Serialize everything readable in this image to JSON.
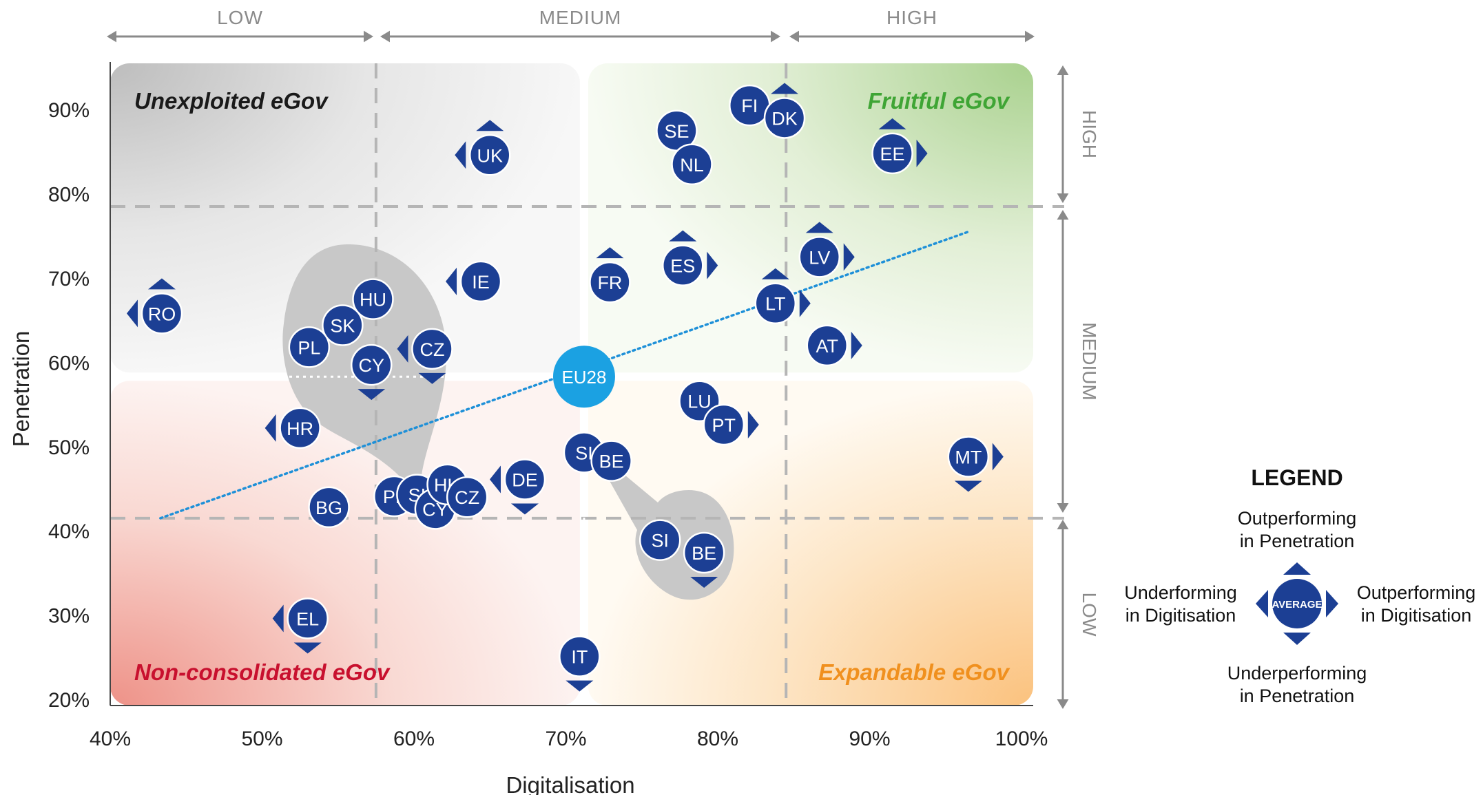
{
  "chart_data": {
    "type": "scatter",
    "title": "",
    "xlabel": "Digitalisation",
    "ylabel": "Penetration",
    "xlim": [
      40,
      100
    ],
    "ylim": [
      20,
      95
    ],
    "x_ticks": [
      40,
      50,
      60,
      70,
      80,
      90,
      100
    ],
    "x_tick_labels": [
      "40%",
      "50%",
      "60%",
      "70%",
      "80%",
      "90%",
      "100%"
    ],
    "y_ticks": [
      20,
      30,
      40,
      50,
      60,
      70,
      80,
      90
    ],
    "y_tick_labels": [
      "20%",
      "30%",
      "40%",
      "50%",
      "60%",
      "70%",
      "80%",
      "90%"
    ],
    "x_bands": [
      {
        "label": "LOW",
        "from": 40,
        "to": 57.5
      },
      {
        "label": "MEDIUM",
        "from": 57.5,
        "to": 84.5
      },
      {
        "label": "HIGH",
        "from": 84.5,
        "to": 100
      }
    ],
    "y_bands": [
      {
        "label": "HIGH",
        "from": 78.5,
        "to": 95
      },
      {
        "label": "MEDIUM",
        "from": 41.5,
        "to": 78.5
      },
      {
        "label": "LOW",
        "from": 20,
        "to": 41.5
      }
    ],
    "quadrants": [
      {
        "label": "Unexploited eGov",
        "position": "top-left",
        "color": "#1a1a1a",
        "fill": "#cfcfcf"
      },
      {
        "label": "Fruitful eGov",
        "position": "top-right",
        "color": "#3fa535",
        "fill": "#a8d08d"
      },
      {
        "label": "Non-consolidated eGov",
        "position": "bottom-left",
        "color": "#c8102e",
        "fill": "#ef9a94"
      },
      {
        "label": "Expandable eGov",
        "position": "bottom-right",
        "color": "#f0901e",
        "fill": "#fbc98a"
      }
    ],
    "split": {
      "x": 71.2,
      "y": 58.3
    },
    "trendline": {
      "from": [
        43.3,
        41.5
      ],
      "to": [
        96.5,
        75.5
      ],
      "color": "#1e90d8"
    },
    "average_point": {
      "label": "EU28",
      "x": 71.2,
      "y": 58.3,
      "color": "#1ba1e2"
    },
    "series": [
      {
        "points": [
          {
            "label": "FI",
            "x": 82.1,
            "y": 90.5,
            "arrows": []
          },
          {
            "label": "DK",
            "x": 84.4,
            "y": 89.0,
            "arrows": [
              "up"
            ]
          },
          {
            "label": "SE",
            "x": 77.3,
            "y": 87.5,
            "arrows": []
          },
          {
            "label": "NL",
            "x": 78.3,
            "y": 83.5,
            "arrows": []
          },
          {
            "label": "EE",
            "x": 91.5,
            "y": 84.8,
            "arrows": [
              "up",
              "right"
            ]
          },
          {
            "label": "UK",
            "x": 65.0,
            "y": 84.6,
            "arrows": [
              "up",
              "left"
            ]
          },
          {
            "label": "ES",
            "x": 77.7,
            "y": 71.5,
            "arrows": [
              "up",
              "right"
            ]
          },
          {
            "label": "FR",
            "x": 72.9,
            "y": 69.5,
            "arrows": [
              "up"
            ]
          },
          {
            "label": "LV",
            "x": 86.7,
            "y": 72.5,
            "arrows": [
              "up",
              "right"
            ]
          },
          {
            "label": "LT",
            "x": 83.8,
            "y": 67.0,
            "arrows": [
              "up",
              "right"
            ]
          },
          {
            "label": "AT",
            "x": 87.2,
            "y": 62.0,
            "arrows": [
              "right"
            ]
          },
          {
            "label": "IE",
            "x": 64.4,
            "y": 69.6,
            "arrows": [
              "left"
            ]
          },
          {
            "label": "RO",
            "x": 43.4,
            "y": 65.8,
            "arrows": [
              "up",
              "left"
            ]
          },
          {
            "label": "HU",
            "x": 57.3,
            "y": 67.5,
            "arrows": []
          },
          {
            "label": "SK",
            "x": 55.3,
            "y": 64.4,
            "arrows": []
          },
          {
            "label": "PL",
            "x": 53.1,
            "y": 61.8,
            "arrows": []
          },
          {
            "label": "CY",
            "x": 57.2,
            "y": 59.7,
            "arrows": [
              "down"
            ]
          },
          {
            "label": "CZ",
            "x": 61.2,
            "y": 61.6,
            "arrows": [
              "left",
              "down"
            ]
          },
          {
            "label": "LU",
            "x": 78.8,
            "y": 55.4,
            "arrows": []
          },
          {
            "label": "PT",
            "x": 80.4,
            "y": 52.6,
            "arrows": [
              "right"
            ]
          },
          {
            "label": "HR",
            "x": 52.5,
            "y": 52.2,
            "arrows": [
              "left"
            ]
          },
          {
            "label": "SI",
            "x": 71.2,
            "y": 49.3,
            "arrows": []
          },
          {
            "label": "BE",
            "x": 73.0,
            "y": 48.3,
            "arrows": []
          },
          {
            "label": "DE",
            "x": 67.3,
            "y": 46.1,
            "arrows": [
              "left",
              "down"
            ]
          },
          {
            "label": "MT",
            "x": 96.5,
            "y": 48.8,
            "arrows": [
              "right",
              "down"
            ]
          },
          {
            "label": "BG",
            "x": 54.4,
            "y": 42.8,
            "arrows": []
          },
          {
            "label": "PL",
            "x": 58.7,
            "y": 44.1,
            "arrows": []
          },
          {
            "label": "SI",
            "x": 60.2,
            "y": 44.3,
            "arrows": []
          },
          {
            "label": "CY",
            "x": 61.4,
            "y": 42.6,
            "arrows": []
          },
          {
            "label": "HU",
            "x": 62.2,
            "y": 45.5,
            "arrows": []
          },
          {
            "label": "CZ",
            "x": 63.5,
            "y": 44.0,
            "arrows": []
          },
          {
            "label": "SI",
            "x": 76.2,
            "y": 38.9,
            "arrows": []
          },
          {
            "label": "BE",
            "x": 79.1,
            "y": 37.4,
            "arrows": [
              "down"
            ]
          },
          {
            "label": "EL",
            "x": 53.0,
            "y": 29.6,
            "arrows": [
              "left",
              "down"
            ]
          },
          {
            "label": "IT",
            "x": 70.9,
            "y": 25.1,
            "arrows": [
              "down"
            ]
          }
        ]
      }
    ],
    "legend": {
      "title": "LEGEND",
      "center_label": "AVERAGE",
      "top": [
        "Outperforming",
        "in Penetration"
      ],
      "bottom": [
        "Underperforming",
        "in Penetration"
      ],
      "left": [
        "Underforming",
        "in Digitisation"
      ],
      "right": [
        "Outperforming",
        "in Digitisation"
      ],
      "position": "right"
    },
    "colors": {
      "point": "#1c3f94",
      "arrow": "#1c3f94",
      "grid_dash": "#b5b5b5",
      "band_arrow": "#8a8a8a",
      "band_text": "#8a8a8a",
      "cluster": "#c8c8c8"
    }
  }
}
